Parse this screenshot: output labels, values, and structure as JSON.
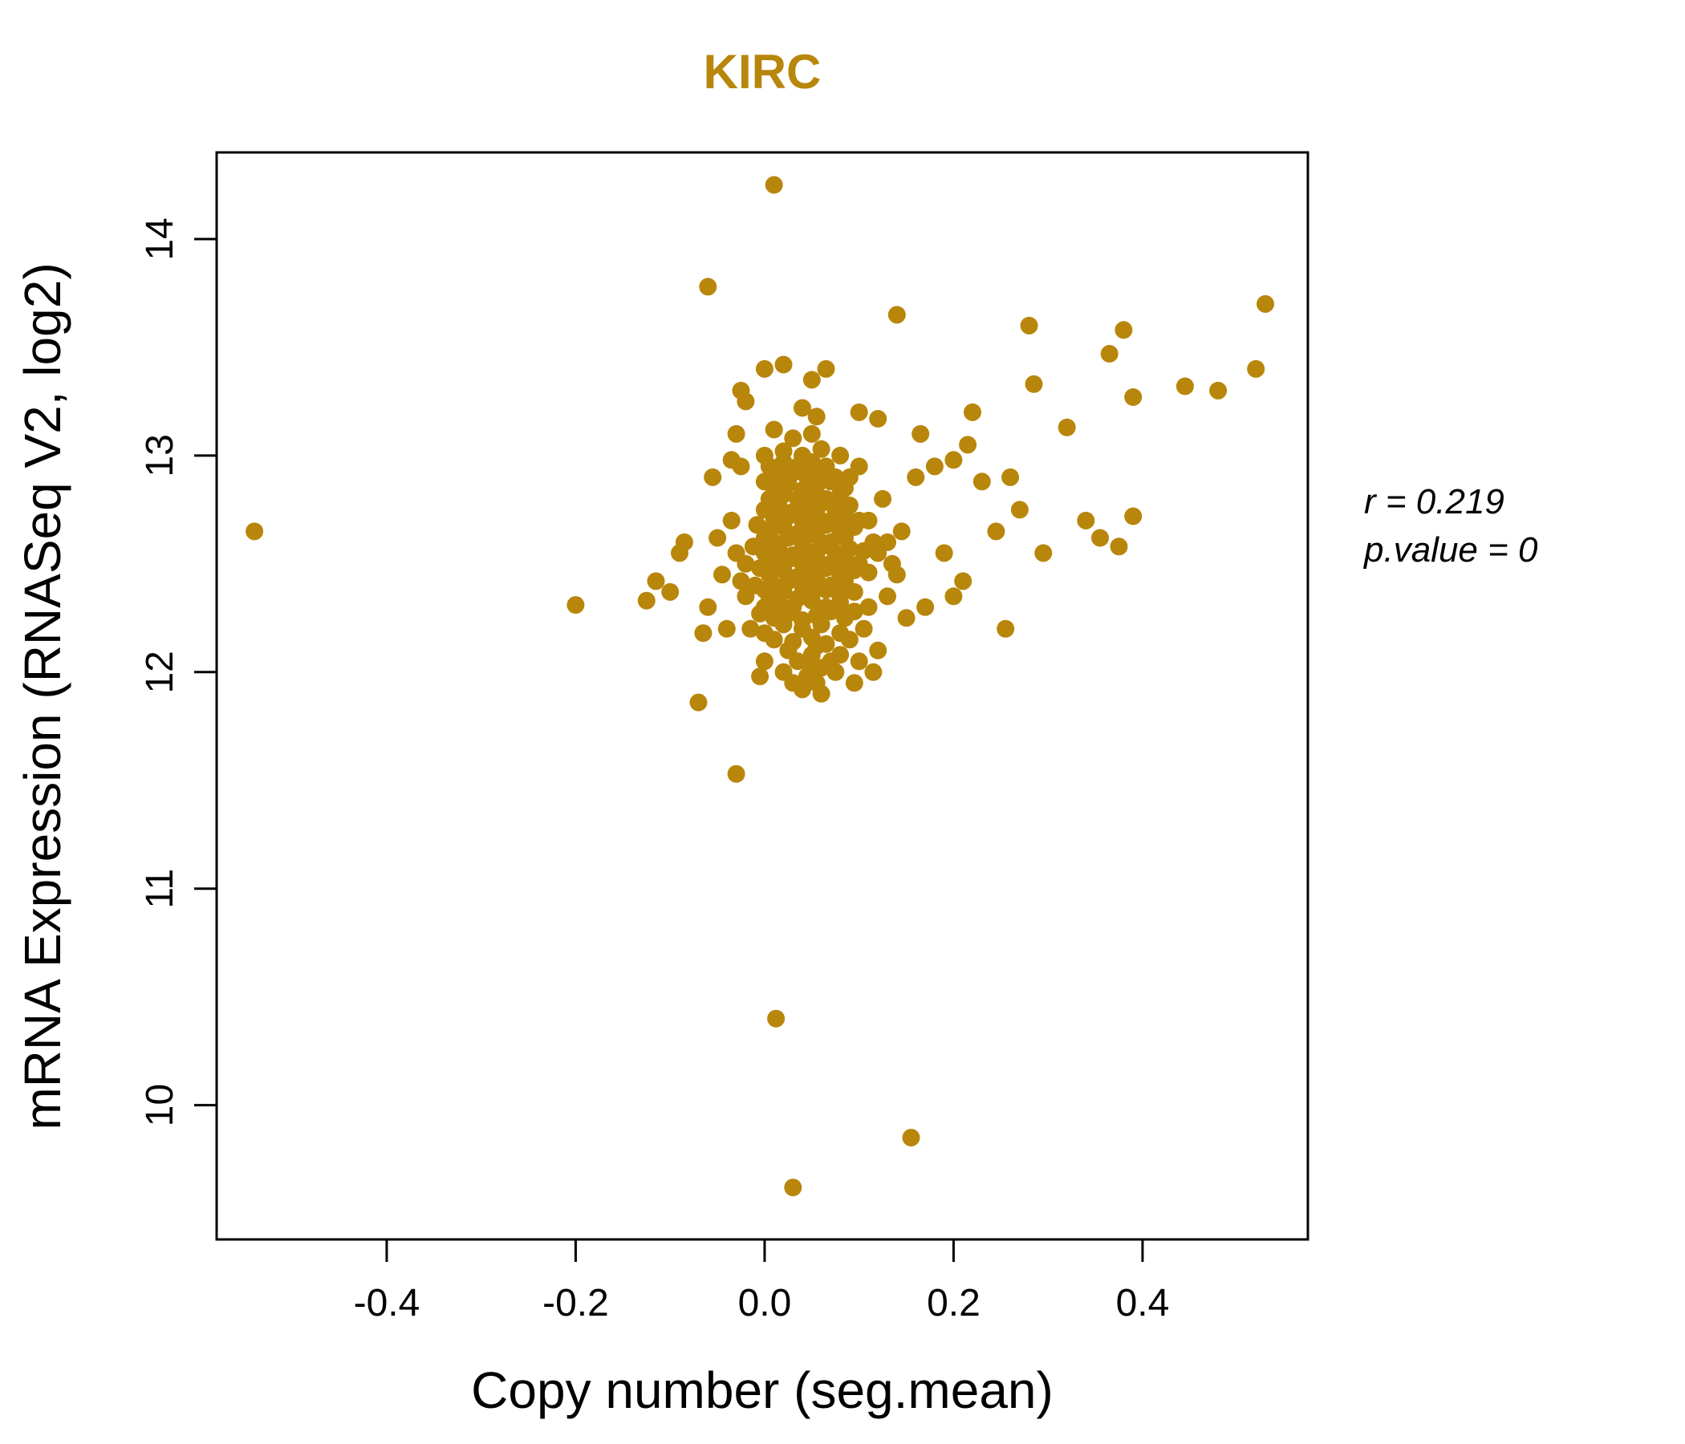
{
  "chart_data": {
    "type": "scatter",
    "title": "KIRC",
    "xlabel": "Copy number (seg.mean)",
    "ylabel": "mRNA Expression (RNASeq V2, log2)",
    "xlim": [
      -0.58,
      0.575
    ],
    "ylim": [
      9.38,
      14.4
    ],
    "xticks": [
      -0.4,
      -0.2,
      0.0,
      0.2,
      0.4
    ],
    "xtick_labels": [
      "-0.4",
      "-0.2",
      "0.0",
      "0.2",
      "0.4"
    ],
    "yticks": [
      10,
      11,
      12,
      13,
      14
    ],
    "ytick_labels": [
      "10",
      "11",
      "12",
      "13",
      "14"
    ],
    "point_color": "#B8860B",
    "title_color": "#B8860B",
    "annotation": {
      "r_line": "r = 0.219",
      "p_line": "p.value = 0"
    },
    "points": [
      [
        -0.54,
        12.65
      ],
      [
        -0.2,
        12.31
      ],
      [
        -0.125,
        12.33
      ],
      [
        -0.115,
        12.42
      ],
      [
        -0.1,
        12.37
      ],
      [
        -0.09,
        12.55
      ],
      [
        -0.085,
        12.6
      ],
      [
        -0.07,
        11.86
      ],
      [
        -0.065,
        12.18
      ],
      [
        -0.06,
        13.78
      ],
      [
        -0.055,
        12.9
      ],
      [
        -0.05,
        12.62
      ],
      [
        -0.03,
        11.53
      ],
      [
        0.01,
        14.25
      ],
      [
        0.012,
        10.4
      ],
      [
        0.03,
        9.62
      ],
      [
        0.155,
        9.85
      ],
      [
        0.14,
        13.65
      ],
      [
        0.28,
        13.6
      ],
      [
        0.38,
        13.58
      ],
      [
        0.365,
        13.47
      ],
      [
        0.53,
        13.7
      ],
      [
        0.52,
        13.4
      ],
      [
        0.445,
        13.32
      ],
      [
        0.48,
        13.3
      ],
      [
        0.39,
        13.27
      ],
      [
        0.285,
        13.33
      ],
      [
        0.22,
        13.2
      ],
      [
        0.215,
        13.05
      ],
      [
        0.32,
        13.13
      ],
      [
        0.26,
        12.9
      ],
      [
        0.165,
        13.1
      ],
      [
        0.12,
        13.17
      ],
      [
        0.1,
        13.2
      ],
      [
        0.0,
        13.4
      ],
      [
        0.02,
        13.42
      ],
      [
        0.05,
        13.35
      ],
      [
        0.065,
        13.4
      ],
      [
        -0.02,
        13.25
      ],
      [
        0.04,
        13.22
      ],
      [
        0.055,
        13.18
      ],
      [
        -0.025,
        13.3
      ],
      [
        -0.03,
        13.1
      ],
      [
        -0.035,
        12.98
      ],
      [
        0.23,
        12.88
      ],
      [
        0.2,
        12.98
      ],
      [
        0.34,
        12.7
      ],
      [
        0.355,
        12.62
      ],
      [
        0.375,
        12.58
      ],
      [
        0.39,
        12.72
      ],
      [
        0.295,
        12.55
      ],
      [
        0.27,
        12.75
      ],
      [
        0.255,
        12.2
      ],
      [
        0.245,
        12.65
      ],
      [
        0.2,
        12.35
      ],
      [
        0.19,
        12.55
      ],
      [
        0.21,
        12.42
      ],
      [
        0.16,
        12.9
      ],
      [
        0.18,
        12.95
      ],
      [
        0.17,
        12.3
      ],
      [
        0.15,
        12.25
      ],
      [
        0.14,
        12.45
      ],
      [
        0.13,
        12.6
      ],
      [
        0.125,
        12.8
      ],
      [
        0.12,
        12.1
      ],
      [
        0.115,
        12.0
      ],
      [
        -0.04,
        12.2
      ],
      [
        -0.045,
        12.45
      ],
      [
        -0.035,
        12.7
      ],
      [
        -0.025,
        12.95
      ],
      [
        -0.06,
        12.3
      ],
      [
        0.095,
        11.95
      ],
      [
        0.06,
        11.9
      ],
      [
        0.05,
        12.02
      ],
      [
        0.03,
        11.95
      ],
      [
        0.08,
        13.0
      ],
      [
        0.09,
        12.9
      ],
      [
        0.1,
        12.95
      ],
      [
        0.11,
        12.7
      ],
      [
        -0.02,
        12.5
      ],
      [
        -0.02,
        12.35
      ],
      [
        -0.015,
        12.2
      ],
      [
        -0.03,
        12.55
      ],
      [
        -0.025,
        12.42
      ],
      [
        0.13,
        12.35
      ],
      [
        0.135,
        12.5
      ],
      [
        0.145,
        12.65
      ],
      [
        0.12,
        12.55
      ],
      [
        0.11,
        12.3
      ],
      [
        0.105,
        12.2
      ],
      [
        0.1,
        12.05
      ],
      [
        0.115,
        12.6
      ],
      [
        0.04,
        11.92
      ],
      [
        0.055,
        11.95
      ],
      [
        -0.005,
        11.98
      ],
      [
        0.075,
        12.0
      ],
      [
        0.02,
        12.0
      ],
      [
        0.035,
        12.05
      ],
      [
        0.05,
        12.08
      ],
      [
        0.06,
        12.02
      ],
      [
        0.045,
        11.98
      ],
      [
        0.07,
        12.05
      ],
      [
        0.025,
        12.1
      ],
      [
        0.08,
        12.08
      ],
      [
        0.0,
        12.05
      ],
      [
        0.055,
        12.12
      ],
      [
        0.01,
        12.15
      ],
      [
        0.03,
        12.14
      ],
      [
        0.05,
        12.16
      ],
      [
        0.065,
        12.13
      ],
      [
        0.08,
        12.18
      ],
      [
        0.04,
        12.2
      ],
      [
        0.02,
        12.22
      ],
      [
        0.0,
        12.18
      ],
      [
        0.09,
        12.15
      ],
      [
        0.06,
        12.22
      ],
      [
        0.01,
        12.25
      ],
      [
        0.025,
        12.27
      ],
      [
        0.04,
        12.24
      ],
      [
        0.055,
        12.26
      ],
      [
        0.07,
        12.28
      ],
      [
        0.085,
        12.25
      ],
      [
        0.0,
        12.3
      ],
      [
        0.015,
        12.32
      ],
      [
        0.03,
        12.3
      ],
      [
        0.05,
        12.33
      ],
      [
        0.065,
        12.3
      ],
      [
        0.08,
        12.32
      ],
      [
        0.095,
        12.28
      ],
      [
        -0.005,
        12.27
      ],
      [
        0.005,
        12.35
      ],
      [
        0.02,
        12.37
      ],
      [
        0.035,
        12.34
      ],
      [
        0.05,
        12.36
      ],
      [
        0.065,
        12.38
      ],
      [
        0.08,
        12.35
      ],
      [
        0.095,
        12.37
      ],
      [
        0.01,
        12.4
      ],
      [
        0.025,
        12.42
      ],
      [
        0.04,
        12.4
      ],
      [
        0.055,
        12.43
      ],
      [
        0.07,
        12.4
      ],
      [
        0.085,
        12.42
      ],
      [
        0.0,
        12.38
      ],
      [
        -0.01,
        12.4
      ],
      [
        0.005,
        12.45
      ],
      [
        0.02,
        12.47
      ],
      [
        0.035,
        12.44
      ],
      [
        0.05,
        12.46
      ],
      [
        0.065,
        12.48
      ],
      [
        0.08,
        12.45
      ],
      [
        0.095,
        12.47
      ],
      [
        0.11,
        12.46
      ],
      [
        -0.005,
        12.48
      ],
      [
        0.01,
        12.5
      ],
      [
        0.025,
        12.52
      ],
      [
        0.04,
        12.5
      ],
      [
        0.055,
        12.53
      ],
      [
        0.07,
        12.5
      ],
      [
        0.085,
        12.52
      ],
      [
        0.1,
        12.5
      ],
      [
        0.0,
        12.55
      ],
      [
        0.015,
        12.57
      ],
      [
        0.03,
        12.54
      ],
      [
        0.045,
        12.56
      ],
      [
        0.06,
        12.58
      ],
      [
        0.075,
        12.55
      ],
      [
        0.09,
        12.57
      ],
      [
        0.105,
        12.56
      ],
      [
        0.01,
        12.6
      ],
      [
        0.025,
        12.62
      ],
      [
        0.04,
        12.6
      ],
      [
        0.055,
        12.63
      ],
      [
        0.07,
        12.6
      ],
      [
        0.085,
        12.62
      ],
      [
        0.0,
        12.62
      ],
      [
        -0.012,
        12.58
      ],
      [
        0.005,
        12.65
      ],
      [
        0.02,
        12.67
      ],
      [
        0.035,
        12.64
      ],
      [
        0.05,
        12.66
      ],
      [
        0.065,
        12.68
      ],
      [
        0.08,
        12.65
      ],
      [
        0.095,
        12.67
      ],
      [
        0.01,
        12.7
      ],
      [
        0.025,
        12.72
      ],
      [
        0.04,
        12.7
      ],
      [
        0.055,
        12.73
      ],
      [
        0.07,
        12.7
      ],
      [
        0.085,
        12.72
      ],
      [
        0.1,
        12.7
      ],
      [
        -0.008,
        12.68
      ],
      [
        0.0,
        12.75
      ],
      [
        0.015,
        12.77
      ],
      [
        0.03,
        12.74
      ],
      [
        0.045,
        12.76
      ],
      [
        0.06,
        12.78
      ],
      [
        0.075,
        12.75
      ],
      [
        0.09,
        12.77
      ],
      [
        0.005,
        12.8
      ],
      [
        0.02,
        12.82
      ],
      [
        0.035,
        12.8
      ],
      [
        0.05,
        12.83
      ],
      [
        0.065,
        12.8
      ],
      [
        0.08,
        12.82
      ],
      [
        0.01,
        12.85
      ],
      [
        0.025,
        12.87
      ],
      [
        0.04,
        12.84
      ],
      [
        0.055,
        12.86
      ],
      [
        0.07,
        12.88
      ],
      [
        0.085,
        12.85
      ],
      [
        0.0,
        12.88
      ],
      [
        0.015,
        12.9
      ],
      [
        0.03,
        12.92
      ],
      [
        0.045,
        12.9
      ],
      [
        0.06,
        12.93
      ],
      [
        0.075,
        12.9
      ],
      [
        0.005,
        12.95
      ],
      [
        0.02,
        12.97
      ],
      [
        0.035,
        12.95
      ],
      [
        0.05,
        12.97
      ],
      [
        0.065,
        12.95
      ],
      [
        0.0,
        13.0
      ],
      [
        0.02,
        13.02
      ],
      [
        0.04,
        13.0
      ],
      [
        0.06,
        13.03
      ],
      [
        0.03,
        13.08
      ],
      [
        0.01,
        13.12
      ],
      [
        0.05,
        13.1
      ]
    ]
  }
}
